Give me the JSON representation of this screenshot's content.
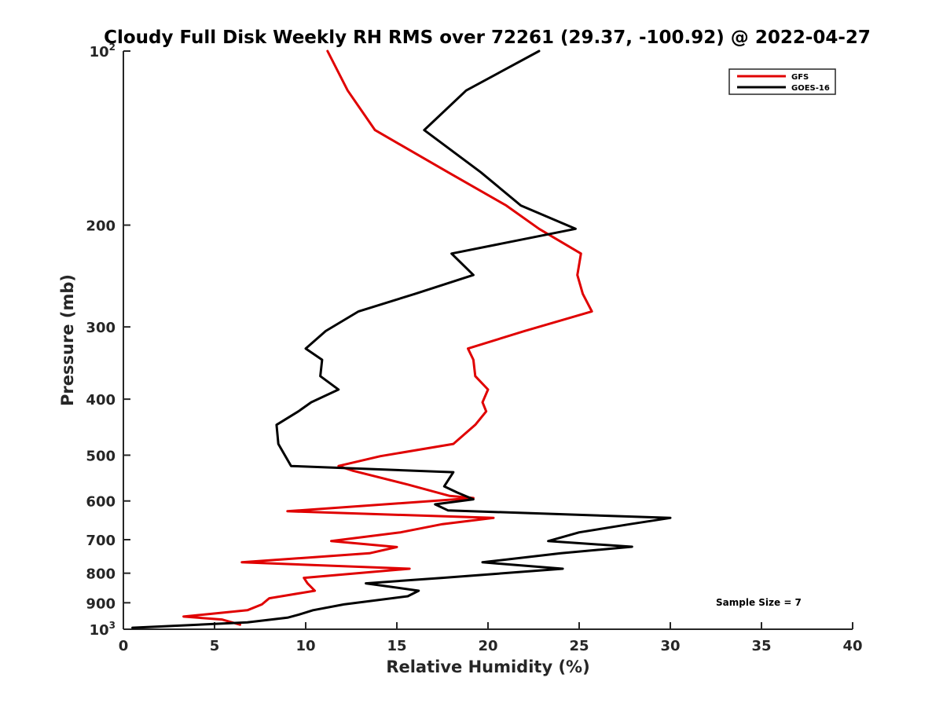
{
  "chart_data": {
    "type": "line",
    "title": "Cloudy Full Disk Weekly RH RMS over 72261 (29.37, -100.92) @ 2022-04-27",
    "xlabel": "Relative Humidity (%)",
    "ylabel": "Pressure (mb)",
    "xlim": [
      0,
      40
    ],
    "ylim": [
      100,
      1000
    ],
    "y_scale": "log",
    "y_reversed": true,
    "grid": false,
    "legend_position": "top-right",
    "x_ticks": [
      "0",
      "5",
      "10",
      "15",
      "20",
      "25",
      "30",
      "35",
      "40"
    ],
    "y_ticks": [
      {
        "value": 100,
        "base": "10",
        "exp": "2"
      },
      {
        "value": 200,
        "label": "200"
      },
      {
        "value": 300,
        "label": "300"
      },
      {
        "value": 400,
        "label": "400"
      },
      {
        "value": 500,
        "label": "500"
      },
      {
        "value": 600,
        "label": "600"
      },
      {
        "value": 700,
        "label": "700"
      },
      {
        "value": 800,
        "label": "800"
      },
      {
        "value": 900,
        "label": "900"
      },
      {
        "value": 1000,
        "base": "10",
        "exp": "3"
      }
    ],
    "annotation": "Sample Size = 7",
    "series": [
      {
        "name": "GFS",
        "color": "#e00000",
        "points": [
          {
            "x": 11.2,
            "y": 100
          },
          {
            "x": 12.3,
            "y": 117
          },
          {
            "x": 13.8,
            "y": 137
          },
          {
            "x": 17.8,
            "y": 162
          },
          {
            "x": 21.0,
            "y": 185
          },
          {
            "x": 22.8,
            "y": 203
          },
          {
            "x": 25.1,
            "y": 224
          },
          {
            "x": 24.9,
            "y": 244
          },
          {
            "x": 25.2,
            "y": 263
          },
          {
            "x": 25.7,
            "y": 282
          },
          {
            "x": 22.0,
            "y": 305
          },
          {
            "x": 18.9,
            "y": 327
          },
          {
            "x": 19.2,
            "y": 342
          },
          {
            "x": 19.3,
            "y": 365
          },
          {
            "x": 20.0,
            "y": 385
          },
          {
            "x": 19.7,
            "y": 405
          },
          {
            "x": 19.9,
            "y": 420
          },
          {
            "x": 19.3,
            "y": 443
          },
          {
            "x": 18.1,
            "y": 478
          },
          {
            "x": 14.1,
            "y": 502
          },
          {
            "x": 11.8,
            "y": 522
          },
          {
            "x": 12.6,
            "y": 532
          },
          {
            "x": 15.6,
            "y": 562
          },
          {
            "x": 17.9,
            "y": 588
          },
          {
            "x": 19.2,
            "y": 593
          },
          {
            "x": 9.0,
            "y": 625
          },
          {
            "x": 20.3,
            "y": 642
          },
          {
            "x": 17.5,
            "y": 658
          },
          {
            "x": 15.2,
            "y": 680
          },
          {
            "x": 11.4,
            "y": 704
          },
          {
            "x": 15.0,
            "y": 721
          },
          {
            "x": 13.5,
            "y": 739
          },
          {
            "x": 6.5,
            "y": 766
          },
          {
            "x": 15.7,
            "y": 786
          },
          {
            "x": 9.9,
            "y": 815
          },
          {
            "x": 10.1,
            "y": 833
          },
          {
            "x": 10.5,
            "y": 858
          },
          {
            "x": 8.0,
            "y": 884
          },
          {
            "x": 7.6,
            "y": 906
          },
          {
            "x": 6.8,
            "y": 927
          },
          {
            "x": 3.3,
            "y": 951
          },
          {
            "x": 5.4,
            "y": 962
          },
          {
            "x": 6.4,
            "y": 982
          }
        ]
      },
      {
        "name": "GOES-16",
        "color": "#000000",
        "points": [
          {
            "x": 22.8,
            "y": 100
          },
          {
            "x": 18.8,
            "y": 117
          },
          {
            "x": 16.5,
            "y": 137
          },
          {
            "x": 19.6,
            "y": 162
          },
          {
            "x": 21.8,
            "y": 185
          },
          {
            "x": 24.8,
            "y": 203
          },
          {
            "x": 18.0,
            "y": 224
          },
          {
            "x": 19.2,
            "y": 244
          },
          {
            "x": 16.0,
            "y": 263
          },
          {
            "x": 12.9,
            "y": 282
          },
          {
            "x": 11.1,
            "y": 305
          },
          {
            "x": 10.0,
            "y": 327
          },
          {
            "x": 10.9,
            "y": 342
          },
          {
            "x": 10.8,
            "y": 365
          },
          {
            "x": 11.8,
            "y": 385
          },
          {
            "x": 10.3,
            "y": 405
          },
          {
            "x": 9.6,
            "y": 420
          },
          {
            "x": 8.4,
            "y": 443
          },
          {
            "x": 8.5,
            "y": 478
          },
          {
            "x": 9.2,
            "y": 522
          },
          {
            "x": 18.1,
            "y": 535
          },
          {
            "x": 17.6,
            "y": 566
          },
          {
            "x": 18.3,
            "y": 580
          },
          {
            "x": 19.2,
            "y": 596
          },
          {
            "x": 17.1,
            "y": 608
          },
          {
            "x": 17.8,
            "y": 623
          },
          {
            "x": 30.0,
            "y": 642
          },
          {
            "x": 27.8,
            "y": 658
          },
          {
            "x": 25.0,
            "y": 680
          },
          {
            "x": 23.3,
            "y": 704
          },
          {
            "x": 27.9,
            "y": 720
          },
          {
            "x": 24.0,
            "y": 739
          },
          {
            "x": 19.7,
            "y": 766
          },
          {
            "x": 24.1,
            "y": 786
          },
          {
            "x": 17.5,
            "y": 815
          },
          {
            "x": 13.3,
            "y": 833
          },
          {
            "x": 16.2,
            "y": 858
          },
          {
            "x": 15.6,
            "y": 877
          },
          {
            "x": 12.1,
            "y": 906
          },
          {
            "x": 10.4,
            "y": 927
          },
          {
            "x": 9.6,
            "y": 944
          },
          {
            "x": 9.0,
            "y": 955
          },
          {
            "x": 6.8,
            "y": 973
          },
          {
            "x": 0.5,
            "y": 994
          }
        ]
      }
    ]
  }
}
